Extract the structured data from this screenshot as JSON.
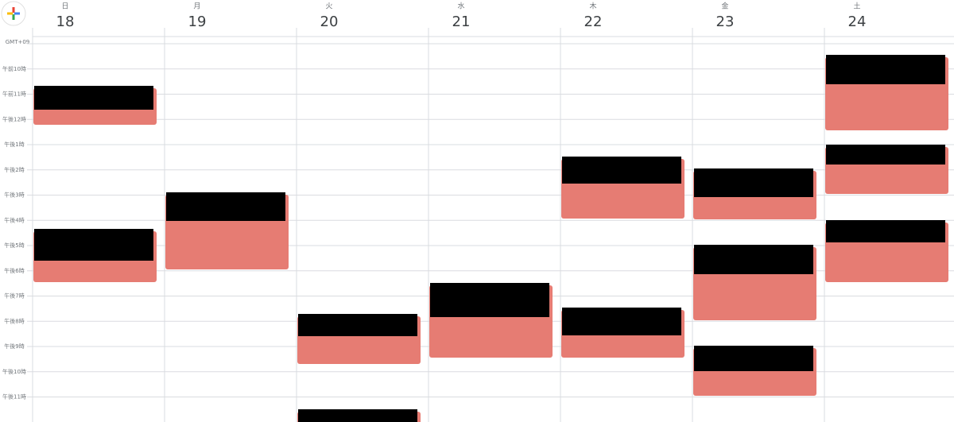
{
  "header": {
    "timezone": "GMT+09",
    "days": [
      {
        "weekday": "日",
        "date": "18"
      },
      {
        "weekday": "月",
        "date": "19"
      },
      {
        "weekday": "火",
        "date": "20"
      },
      {
        "weekday": "水",
        "date": "21"
      },
      {
        "weekday": "木",
        "date": "22"
      },
      {
        "weekday": "金",
        "date": "23"
      },
      {
        "weekday": "土",
        "date": "24"
      }
    ]
  },
  "time_labels": [
    "午前10時",
    "午前11時",
    "午後12時",
    "午後1時",
    "午後2時",
    "午後3時",
    "午後4時",
    "午後5時",
    "午後6時",
    "午後7時",
    "午後8時",
    "午後9時",
    "午後10時",
    "午後11時"
  ]
}
